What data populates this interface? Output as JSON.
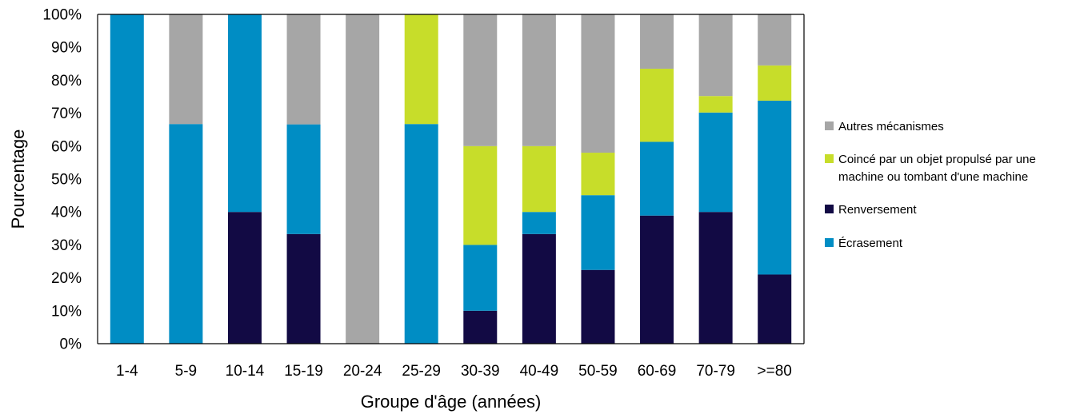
{
  "chart_data": {
    "type": "bar",
    "stacked": true,
    "xlabel": "Groupe d'âge (années)",
    "ylabel": "Pourcentage",
    "ylim": [
      0,
      100
    ],
    "y_ticks": [
      "0%",
      "10%",
      "20%",
      "30%",
      "40%",
      "50%",
      "60%",
      "70%",
      "80%",
      "90%",
      "100%"
    ],
    "grid": false,
    "legend_position": "right",
    "categories": [
      "1-4",
      "5-9",
      "10-14",
      "15-19",
      "20-24",
      "25-29",
      "30-39",
      "40-49",
      "50-59",
      "60-69",
      "70-79",
      ">=80"
    ],
    "series": [
      {
        "name": "Renversement",
        "color": "#120a44",
        "values": [
          0,
          0,
          40,
          33.3,
          0,
          0,
          10,
          33.3,
          22.4,
          38.9,
          40,
          21
        ]
      },
      {
        "name": "Écrasement",
        "color": "#008dc4",
        "values": [
          100,
          66.7,
          60,
          33.3,
          0,
          66.7,
          20,
          6.7,
          22.7,
          22.4,
          30.2,
          52.8
        ]
      },
      {
        "name": "Coincé par un objet propulsé par une machine ou tombant d'une machine",
        "legend_lines": [
          "Coincé par un objet propulsé par une",
          "machine ou tombant d'une machine"
        ],
        "color": "#c7dd2a",
        "values": [
          0,
          0,
          0,
          0,
          0,
          33.3,
          30,
          20,
          12.9,
          22.2,
          5,
          10.7
        ]
      },
      {
        "name": "Autres mécanismes",
        "color": "#a6a6a6",
        "values": [
          0,
          33.3,
          0,
          33.4,
          100,
          0,
          40,
          40,
          42,
          16.5,
          24.8,
          15.5
        ]
      }
    ],
    "legend_order": [
      "Autres mécanismes",
      "Coincé par un objet propulsé par une machine ou tombant d'une machine",
      "Renversement",
      "Écrasement"
    ]
  }
}
